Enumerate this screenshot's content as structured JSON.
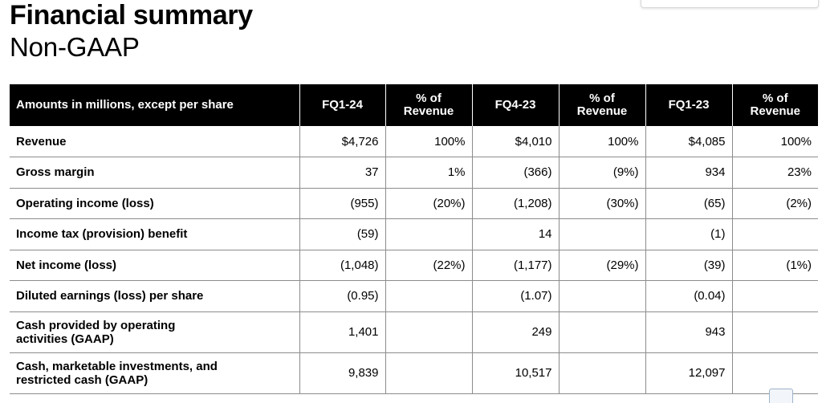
{
  "title": "Financial summary",
  "subtitle": "Non-GAAP",
  "table": {
    "headers": [
      "Amounts in millions, except per share",
      "FQ1-24",
      "% of\nRevenue",
      "FQ4-23",
      "% of\nRevenue",
      "FQ1-23",
      "% of\nRevenue"
    ],
    "rows": [
      {
        "label": "Revenue",
        "cells": [
          "$4,726",
          "100%",
          "$4,010",
          "100%",
          "$4,085",
          "100%"
        ]
      },
      {
        "label": "Gross margin",
        "cells": [
          "37",
          "1%",
          "(366)",
          "(9%)",
          "934",
          "23%"
        ]
      },
      {
        "label": "Operating income (loss)",
        "cells": [
          "(955)",
          "(20%)",
          "(1,208)",
          "(30%)",
          "(65)",
          "(2%)"
        ]
      },
      {
        "label": "Income tax (provision) benefit",
        "cells": [
          "(59)",
          "",
          "14",
          "",
          "(1)",
          ""
        ]
      },
      {
        "label": "Net income (loss)",
        "cells": [
          "(1,048)",
          "(22%)",
          "(1,177)",
          "(29%)",
          "(39)",
          "(1%)"
        ]
      },
      {
        "label": "Diluted earnings (loss) per share",
        "cells": [
          "(0.95)",
          "",
          "(1.07)",
          "",
          "(0.04)",
          ""
        ]
      },
      {
        "label": "Cash provided by operating\nactivities (GAAP)",
        "cells": [
          "1,401",
          "",
          "249",
          "",
          "943",
          ""
        ]
      },
      {
        "label": "Cash, marketable investments, and\nrestricted cash (GAAP)",
        "cells": [
          "9,839",
          "",
          "10,517",
          "",
          "12,097",
          ""
        ]
      }
    ]
  }
}
